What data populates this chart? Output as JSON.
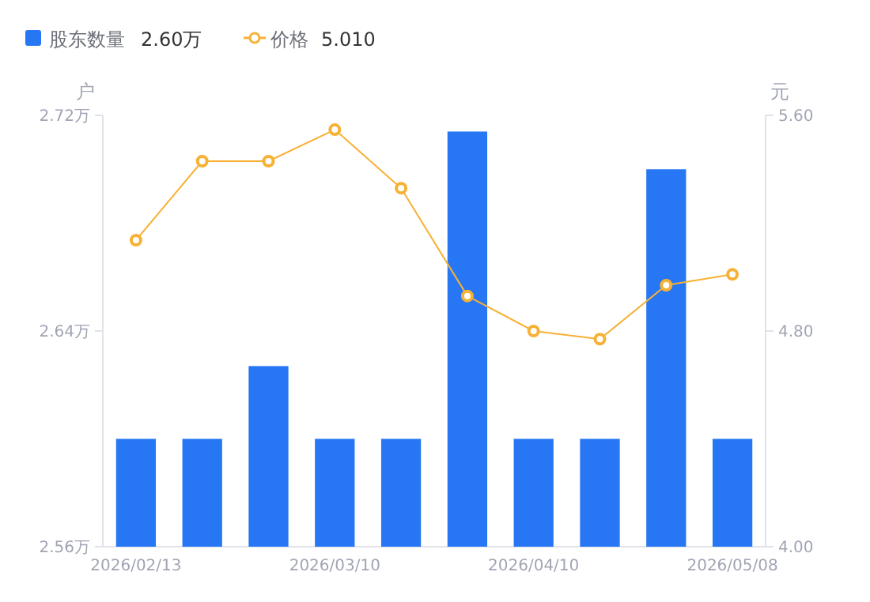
{
  "chart_data": {
    "type": "bar",
    "categories": [
      "2026/02/13",
      null,
      null,
      "2026/03/10",
      null,
      null,
      "2026/04/10",
      null,
      null,
      "2026/05/08"
    ],
    "series": [
      {
        "name": "股东数量",
        "color": "#2777f4",
        "values": [
          2.6,
          2.6,
          2.627,
          2.6,
          2.6,
          2.714,
          2.6,
          2.6,
          2.7,
          2.6
        ]
      },
      {
        "name": "价格",
        "type": "line",
        "axis": "y2",
        "color": "#f7b135",
        "marker": "circle",
        "values": [
          5.137,
          5.43,
          5.43,
          5.547,
          5.33,
          4.93,
          4.8,
          4.77,
          4.97,
          5.01
        ]
      }
    ],
    "ylabel": "户",
    "y2label": "元",
    "ylim": [
      2.56,
      2.72
    ],
    "yticks": [
      {
        "value": 2.56,
        "label": "2.56万"
      },
      {
        "value": 2.64,
        "label": "2.64万"
      },
      {
        "value": 2.72,
        "label": "2.72万"
      }
    ],
    "y2lim": [
      4.0,
      5.6
    ],
    "y2ticks": [
      {
        "value": 4.0,
        "label": "4.00"
      },
      {
        "value": 4.8,
        "label": "4.80"
      },
      {
        "value": 5.6,
        "label": "5.60"
      }
    ],
    "legend": "top left",
    "grid": false,
    "annotations": [
      "2.60万",
      "5.010"
    ]
  }
}
